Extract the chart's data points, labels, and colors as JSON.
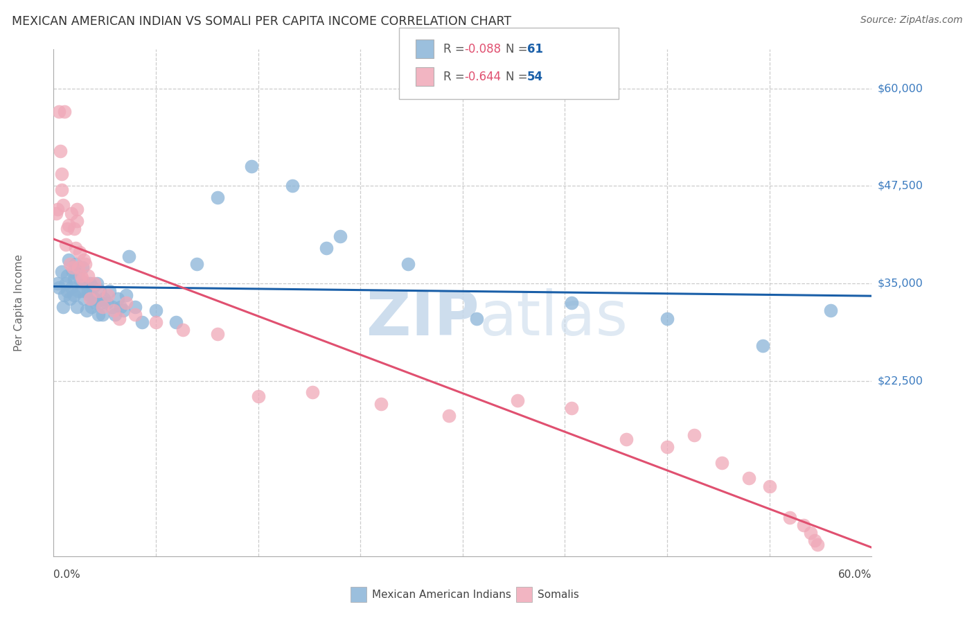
{
  "title": "MEXICAN AMERICAN INDIAN VS SOMALI PER CAPITA INCOME CORRELATION CHART",
  "source": "Source: ZipAtlas.com",
  "ylabel": "Per Capita Income",
  "ytick_labels": [
    "$22,500",
    "$35,000",
    "$47,500",
    "$60,000"
  ],
  "ytick_values": [
    22500,
    35000,
    47500,
    60000
  ],
  "ymin": 0,
  "ymax": 65000,
  "xmin": 0.0,
  "xmax": 0.6,
  "legend_blue_r": "-0.088",
  "legend_blue_n": "61",
  "legend_pink_r": "-0.644",
  "legend_pink_n": "54",
  "legend_label_blue": "Mexican American Indians",
  "legend_label_pink": "Somalis",
  "blue_color": "#8ab4d8",
  "pink_color": "#f0a8b8",
  "blue_line_color": "#1a5fa8",
  "pink_line_color": "#e05070",
  "watermark_zip_color": "#c5d8ea",
  "watermark_atlas_color": "#c5d8ea",
  "background_color": "#ffffff",
  "grid_color": "#cccccc",
  "title_color": "#333333",
  "ytick_color": "#3a7abf",
  "blue_x": [
    0.003,
    0.004,
    0.006,
    0.007,
    0.008,
    0.009,
    0.01,
    0.01,
    0.011,
    0.012,
    0.013,
    0.014,
    0.015,
    0.015,
    0.016,
    0.017,
    0.018,
    0.019,
    0.02,
    0.021,
    0.022,
    0.023,
    0.024,
    0.025,
    0.026,
    0.027,
    0.028,
    0.029,
    0.03,
    0.031,
    0.032,
    0.033,
    0.034,
    0.035,
    0.036,
    0.037,
    0.039,
    0.041,
    0.043,
    0.045,
    0.047,
    0.049,
    0.051,
    0.053,
    0.055,
    0.06,
    0.065,
    0.075,
    0.09,
    0.105,
    0.12,
    0.145,
    0.175,
    0.21,
    0.26,
    0.31,
    0.38,
    0.45,
    0.52,
    0.57,
    0.2
  ],
  "blue_y": [
    35000,
    34500,
    36500,
    32000,
    33500,
    35000,
    34000,
    36000,
    38000,
    33000,
    34500,
    36500,
    35500,
    33500,
    37500,
    32000,
    34000,
    35500,
    34000,
    37000,
    33000,
    35000,
    31500,
    34000,
    33500,
    35000,
    32000,
    34500,
    33000,
    32500,
    35000,
    31000,
    34000,
    32500,
    31000,
    33000,
    32500,
    34000,
    32000,
    31000,
    33000,
    32000,
    31500,
    33500,
    38500,
    32000,
    30000,
    31500,
    30000,
    37500,
    46000,
    50000,
    47500,
    41000,
    37500,
    30500,
    32500,
    30500,
    27000,
    31500,
    39500
  ],
  "pink_x": [
    0.002,
    0.003,
    0.004,
    0.005,
    0.006,
    0.006,
    0.007,
    0.008,
    0.009,
    0.01,
    0.011,
    0.012,
    0.013,
    0.014,
    0.015,
    0.016,
    0.017,
    0.017,
    0.018,
    0.019,
    0.02,
    0.021,
    0.022,
    0.023,
    0.025,
    0.027,
    0.03,
    0.033,
    0.036,
    0.04,
    0.044,
    0.048,
    0.053,
    0.06,
    0.075,
    0.095,
    0.12,
    0.15,
    0.19,
    0.24,
    0.29,
    0.34,
    0.38,
    0.42,
    0.45,
    0.47,
    0.49,
    0.51,
    0.525,
    0.54,
    0.55,
    0.555,
    0.558,
    0.56
  ],
  "pink_y": [
    44000,
    44500,
    57000,
    52000,
    49000,
    47000,
    45000,
    57000,
    40000,
    42000,
    42500,
    37500,
    44000,
    37000,
    42000,
    39500,
    44500,
    43000,
    37000,
    39000,
    36000,
    35500,
    38000,
    37500,
    36000,
    33000,
    35000,
    34000,
    32000,
    33500,
    31500,
    30500,
    32500,
    31000,
    30000,
    29000,
    28500,
    20500,
    21000,
    19500,
    18000,
    20000,
    19000,
    15000,
    14000,
    15500,
    12000,
    10000,
    9000,
    5000,
    4000,
    3000,
    2000,
    1500
  ]
}
